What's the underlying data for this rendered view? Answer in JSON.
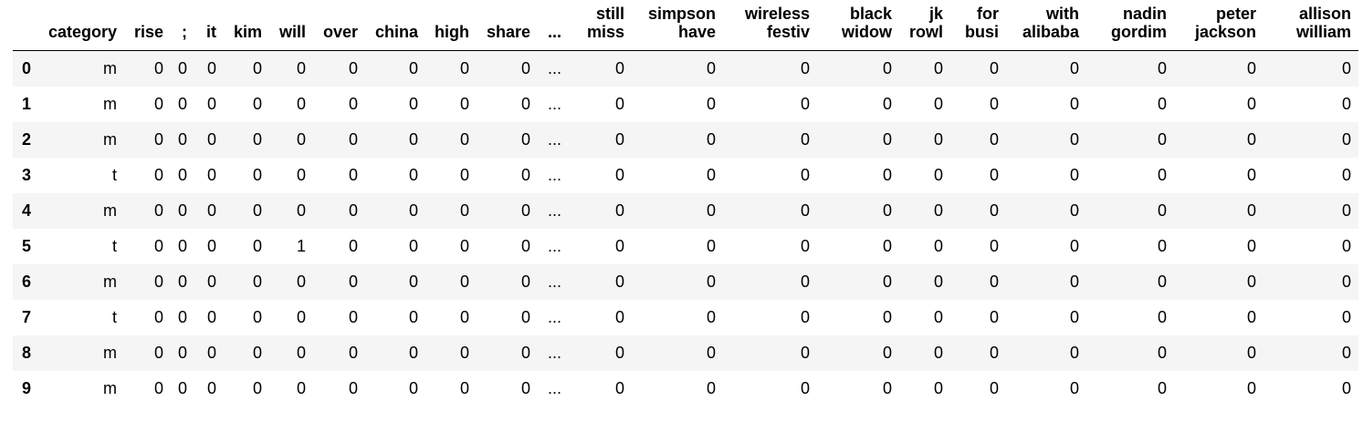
{
  "table": {
    "index_header": "",
    "columns": [
      [
        "category"
      ],
      [
        "rise"
      ],
      [
        ";"
      ],
      [
        "it"
      ],
      [
        "kim"
      ],
      [
        "will"
      ],
      [
        "over"
      ],
      [
        "china"
      ],
      [
        "high"
      ],
      [
        "share"
      ],
      [
        "..."
      ],
      [
        "still",
        "miss"
      ],
      [
        "simpson",
        "have"
      ],
      [
        "wireless",
        "festiv"
      ],
      [
        "black",
        "widow"
      ],
      [
        "jk",
        "rowl"
      ],
      [
        "for",
        "busi"
      ],
      [
        "with",
        "alibaba"
      ],
      [
        "nadin",
        "gordim"
      ],
      [
        "peter",
        "jackson"
      ],
      [
        "allison",
        "william"
      ]
    ],
    "rows": [
      {
        "index": "0",
        "cells": [
          "m",
          "0",
          "0",
          "0",
          "0",
          "0",
          "0",
          "0",
          "0",
          "0",
          "...",
          "0",
          "0",
          "0",
          "0",
          "0",
          "0",
          "0",
          "0",
          "0",
          "0"
        ]
      },
      {
        "index": "1",
        "cells": [
          "m",
          "0",
          "0",
          "0",
          "0",
          "0",
          "0",
          "0",
          "0",
          "0",
          "...",
          "0",
          "0",
          "0",
          "0",
          "0",
          "0",
          "0",
          "0",
          "0",
          "0"
        ]
      },
      {
        "index": "2",
        "cells": [
          "m",
          "0",
          "0",
          "0",
          "0",
          "0",
          "0",
          "0",
          "0",
          "0",
          "...",
          "0",
          "0",
          "0",
          "0",
          "0",
          "0",
          "0",
          "0",
          "0",
          "0"
        ]
      },
      {
        "index": "3",
        "cells": [
          "t",
          "0",
          "0",
          "0",
          "0",
          "0",
          "0",
          "0",
          "0",
          "0",
          "...",
          "0",
          "0",
          "0",
          "0",
          "0",
          "0",
          "0",
          "0",
          "0",
          "0"
        ]
      },
      {
        "index": "4",
        "cells": [
          "m",
          "0",
          "0",
          "0",
          "0",
          "0",
          "0",
          "0",
          "0",
          "0",
          "...",
          "0",
          "0",
          "0",
          "0",
          "0",
          "0",
          "0",
          "0",
          "0",
          "0"
        ]
      },
      {
        "index": "5",
        "cells": [
          "t",
          "0",
          "0",
          "0",
          "0",
          "1",
          "0",
          "0",
          "0",
          "0",
          "...",
          "0",
          "0",
          "0",
          "0",
          "0",
          "0",
          "0",
          "0",
          "0",
          "0"
        ]
      },
      {
        "index": "6",
        "cells": [
          "m",
          "0",
          "0",
          "0",
          "0",
          "0",
          "0",
          "0",
          "0",
          "0",
          "...",
          "0",
          "0",
          "0",
          "0",
          "0",
          "0",
          "0",
          "0",
          "0",
          "0"
        ]
      },
      {
        "index": "7",
        "cells": [
          "t",
          "0",
          "0",
          "0",
          "0",
          "0",
          "0",
          "0",
          "0",
          "0",
          "...",
          "0",
          "0",
          "0",
          "0",
          "0",
          "0",
          "0",
          "0",
          "0",
          "0"
        ]
      },
      {
        "index": "8",
        "cells": [
          "m",
          "0",
          "0",
          "0",
          "0",
          "0",
          "0",
          "0",
          "0",
          "0",
          "...",
          "0",
          "0",
          "0",
          "0",
          "0",
          "0",
          "0",
          "0",
          "0",
          "0"
        ]
      },
      {
        "index": "9",
        "cells": [
          "m",
          "0",
          "0",
          "0",
          "0",
          "0",
          "0",
          "0",
          "0",
          "0",
          "...",
          "0",
          "0",
          "0",
          "0",
          "0",
          "0",
          "0",
          "0",
          "0",
          "0"
        ]
      }
    ]
  }
}
